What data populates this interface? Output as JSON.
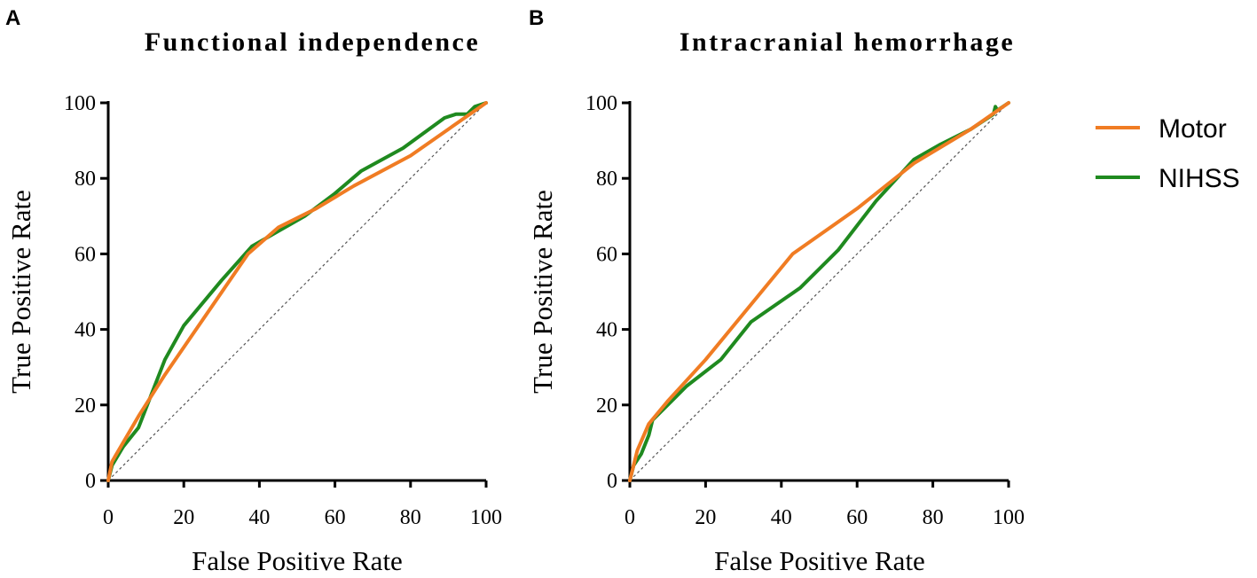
{
  "legend": [
    {
      "name": "Motor",
      "color": "#f07c23"
    },
    {
      "name": "NIHSS",
      "color": "#1f8a1f"
    }
  ],
  "chart_data": [
    {
      "panel": "A",
      "type": "line",
      "title": "Functional independence",
      "xlabel": "False Positive Rate",
      "ylabel": "True Positive Rate",
      "xlim": [
        0,
        100
      ],
      "ylim": [
        0,
        100
      ],
      "xticks": [
        "0",
        "20",
        "40",
        "60",
        "80",
        "100"
      ],
      "yticks": [
        "0",
        "20",
        "40",
        "60",
        "80",
        "100"
      ],
      "reference_line": {
        "x": [
          0,
          100
        ],
        "y": [
          0,
          100
        ]
      },
      "series": [
        {
          "name": "NIHSS",
          "color": "#1f8a1f",
          "x": [
            0,
            1,
            4,
            8,
            15,
            20,
            30,
            38,
            45,
            52,
            60,
            67,
            78,
            89,
            92,
            95,
            97,
            100
          ],
          "y": [
            0,
            4,
            9,
            14,
            32,
            41,
            53,
            62,
            66,
            70,
            76,
            82,
            88,
            96,
            97,
            97,
            99,
            100
          ]
        },
        {
          "name": "Motor",
          "color": "#f07c23",
          "x": [
            0,
            1,
            8,
            15,
            37,
            45,
            55,
            65,
            80,
            100
          ],
          "y": [
            0,
            5,
            17,
            28,
            60,
            67,
            72,
            78,
            86,
            100
          ]
        }
      ]
    },
    {
      "panel": "B",
      "type": "line",
      "title": "Intracranial hemorrhage",
      "xlabel": "False Positive Rate",
      "ylabel": "True Positive Rate",
      "xlim": [
        0,
        100
      ],
      "ylim": [
        0,
        100
      ],
      "xticks": [
        "0",
        "20",
        "40",
        "60",
        "80",
        "100"
      ],
      "yticks": [
        "0",
        "20",
        "40",
        "60",
        "80",
        "100"
      ],
      "reference_line": {
        "x": [
          0,
          100
        ],
        "y": [
          0,
          100
        ]
      },
      "series": [
        {
          "name": "NIHSS",
          "color": "#1f8a1f",
          "x": [
            0,
            1,
            3,
            5,
            6,
            9,
            15,
            24,
            32,
            45,
            55,
            65,
            75,
            82,
            90,
            96,
            96.5,
            97,
            100
          ],
          "y": [
            0,
            4,
            7,
            12,
            16,
            19,
            25,
            32,
            42,
            51,
            61,
            74,
            85,
            89,
            93,
            97,
            99,
            98,
            100
          ]
        },
        {
          "name": "Motor",
          "color": "#f07c23",
          "x": [
            0,
            2,
            5,
            10,
            20,
            43,
            60,
            75,
            90,
            100
          ],
          "y": [
            0,
            8,
            15,
            21,
            32,
            60,
            72,
            84,
            93,
            100
          ]
        }
      ]
    }
  ]
}
